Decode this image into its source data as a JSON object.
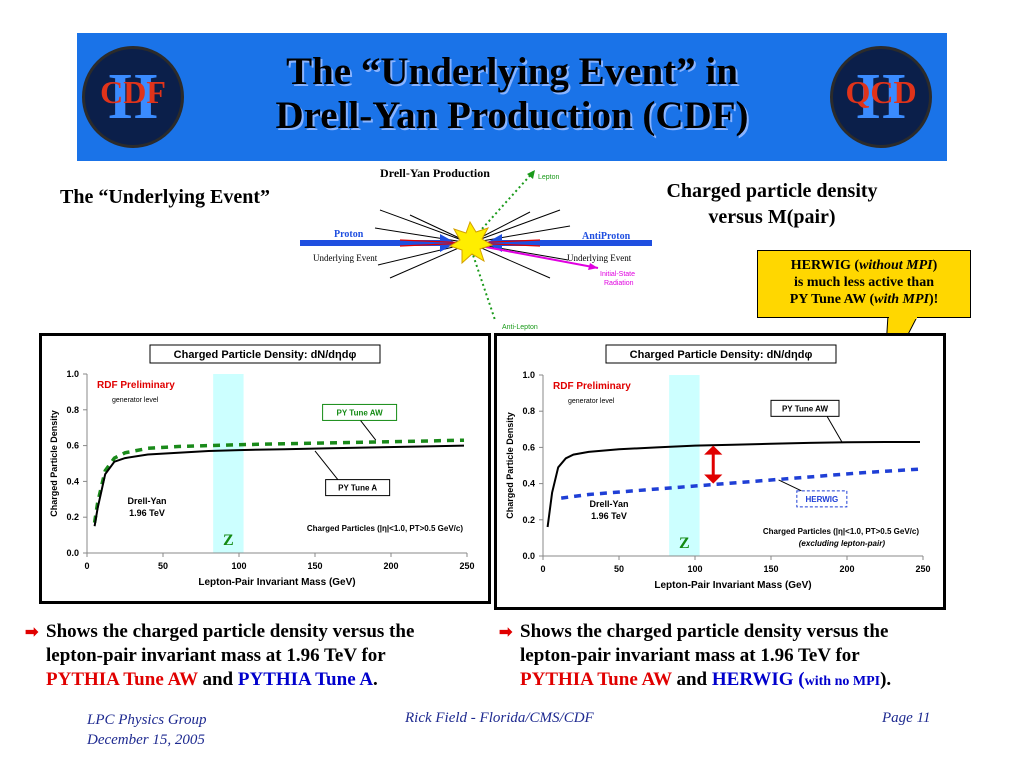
{
  "header": {
    "title_line1": "The “Underlying Event” in",
    "title_line2": "Drell-Yan Production (CDF)",
    "logo_left_text": "CDF",
    "logo_left_roman": "II",
    "logo_right_text": "QCD",
    "logo_right_roman": "II"
  },
  "left_heading": "The “Underlying Event”",
  "right_heading_line1": "Charged particle density",
  "right_heading_line2": "versus M(pair)",
  "diagram": {
    "title": "Drell-Yan Production",
    "lepton": "Lepton",
    "anti_lepton": "Anti-Lepton",
    "proton": "Proton",
    "antiproton": "AntiProton",
    "underlying_left": "Underlying Event",
    "underlying_right": "Underlying Event",
    "isr_line1": "Initial-State",
    "isr_line2": "Radiation"
  },
  "callout": {
    "line1_a": "HERWIG (",
    "line1_b": "without MPI",
    "line1_c": ")",
    "line2": "is much less active than",
    "line3_a": "PY Tune AW (",
    "line3_b": "with MPI",
    "line3_c": ")!"
  },
  "charts_text": {
    "left": {
      "title": "Charged Particle Density: dN/dηdφ",
      "preliminary": "RDF Preliminary",
      "generator": "generator level",
      "ylabel": "Charged Particle Density",
      "xlabel": "Lepton-Pair Invariant Mass  (GeV)",
      "label_aw": "PY Tune AW",
      "label_a": "PY Tune A",
      "process1": "Drell-Yan",
      "process2": "1.96 TeV",
      "z": "Z",
      "cuts": "Charged Particles (|η|<1.0, PT>0.5 GeV/c)"
    },
    "right": {
      "title": "Charged Particle Density: dN/dηdφ",
      "preliminary": "RDF Preliminary",
      "generator": "generator level",
      "ylabel": "Charged Particle Density",
      "xlabel": "Lepton-Pair Invariant Mass  (GeV)",
      "label_aw": "PY Tune AW",
      "label_herwig": "HERWIG",
      "process1": "Drell-Yan",
      "process2": "1.96 TeV",
      "z": "Z",
      "cuts": "Charged Particles (|η|<1.0, PT>0.5 GeV/c)",
      "cuts2": "(excluding lepton-pair)"
    }
  },
  "chart_data": [
    {
      "type": "line",
      "title": "Charged Particle Density: dN/dηdφ",
      "xlabel": "Lepton-Pair Invariant Mass  (GeV)",
      "ylabel": "Charged Particle Density",
      "xlim": [
        0,
        250
      ],
      "ylim": [
        0,
        1.0
      ],
      "xticks": [
        "0",
        "50",
        "100",
        "150",
        "200",
        "250"
      ],
      "yticks": [
        "0.0",
        "0.2",
        "0.4",
        "0.6",
        "0.8",
        "1.0"
      ],
      "grid": false,
      "z_band": [
        83,
        103
      ],
      "series": [
        {
          "name": "PY Tune AW",
          "style": "dashed",
          "color": "#1a8a1a",
          "x": [
            5,
            7,
            12,
            18,
            25,
            40,
            60,
            80,
            100,
            130,
            160,
            190,
            220,
            248
          ],
          "y": [
            0.17,
            0.28,
            0.46,
            0.53,
            0.56,
            0.585,
            0.595,
            0.6,
            0.605,
            0.61,
            0.615,
            0.62,
            0.625,
            0.63
          ]
        },
        {
          "name": "PY Tune A",
          "style": "solid",
          "color": "#000000",
          "x": [
            5,
            7,
            12,
            18,
            25,
            40,
            60,
            80,
            100,
            130,
            160,
            190,
            220,
            248
          ],
          "y": [
            0.15,
            0.25,
            0.44,
            0.51,
            0.53,
            0.55,
            0.56,
            0.57,
            0.575,
            0.58,
            0.585,
            0.59,
            0.595,
            0.6
          ]
        }
      ]
    },
    {
      "type": "line",
      "title": "Charged Particle Density: dN/dηdφ",
      "xlabel": "Lepton-Pair Invariant Mass  (GeV)",
      "ylabel": "Charged Particle Density",
      "xlim": [
        0,
        250
      ],
      "ylim": [
        0,
        1.0
      ],
      "xticks": [
        "0",
        "50",
        "100",
        "150",
        "200",
        "250"
      ],
      "yticks": [
        "0.0",
        "0.2",
        "0.4",
        "0.6",
        "0.8",
        "1.0"
      ],
      "grid": false,
      "z_band": [
        83,
        103
      ],
      "series": [
        {
          "name": "PY Tune AW",
          "style": "solid",
          "color": "#000000",
          "x": [
            3,
            6,
            10,
            15,
            20,
            30,
            50,
            75,
            100,
            125,
            150,
            175,
            200,
            225,
            248
          ],
          "y": [
            0.16,
            0.35,
            0.49,
            0.54,
            0.56,
            0.575,
            0.59,
            0.6,
            0.61,
            0.615,
            0.62,
            0.625,
            0.628,
            0.63,
            0.63
          ]
        },
        {
          "name": "HERWIG",
          "style": "dashed",
          "color": "#1f3fd6",
          "x": [
            12,
            30,
            60,
            90,
            120,
            150,
            180,
            210,
            248
          ],
          "y": [
            0.32,
            0.34,
            0.36,
            0.38,
            0.4,
            0.42,
            0.44,
            0.46,
            0.48
          ]
        }
      ]
    }
  ],
  "bullets": {
    "left_line1": "Shows the charged particle density versus the",
    "left_line2": "lepton-pair invariant mass at 1.96 TeV for",
    "left_py_aw": "PYTHIA Tune AW",
    "left_and": " and ",
    "left_py_a": "PYTHIA Tune A",
    "left_end": ".",
    "right_line1": "Shows the charged particle density versus the",
    "right_line2": "lepton-pair invariant mass at 1.96 TeV for",
    "right_py_aw": "PYTHIA Tune AW",
    "right_and": " and ",
    "right_herwig": "HERWIG (",
    "right_nompi": "with no MPI",
    "right_end": ")."
  },
  "footer": {
    "group": "LPC Physics Group",
    "date": "December 15, 2005",
    "author": "Rick Field - Florida/CMS/CDF",
    "page": "Page 11"
  }
}
